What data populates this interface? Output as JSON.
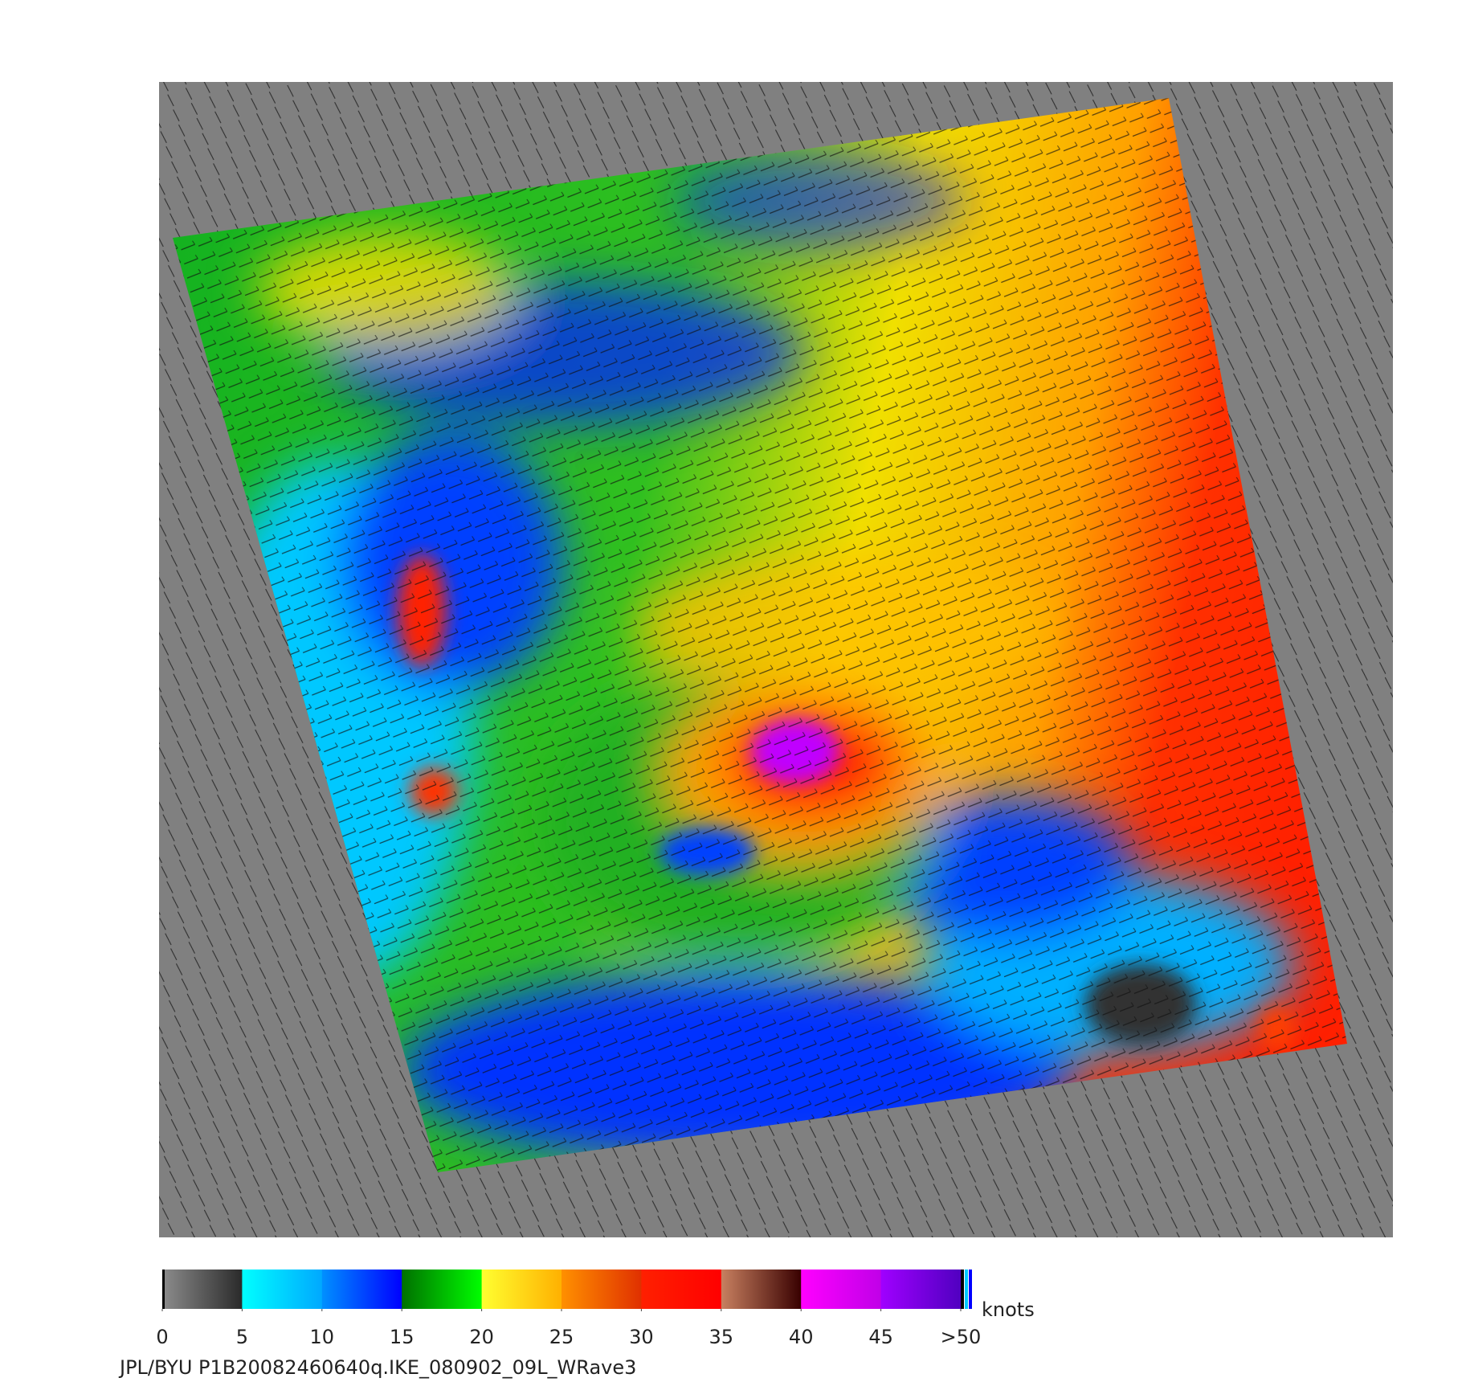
{
  "colorbar": {
    "ticks": [
      0,
      5,
      10,
      15,
      20,
      25,
      30,
      35,
      40,
      45,
      {
        "value": 50,
        "label": ">50"
      }
    ],
    "colors": [
      [
        "#8c8c8c",
        "#2a2a2a"
      ],
      [
        "#00ffff",
        "#00a8ff"
      ],
      [
        "#0090ff",
        "#0000ff"
      ],
      [
        "#007000",
        "#00ff00"
      ],
      [
        "#ffff30",
        "#ffb000"
      ],
      [
        "#ff9000",
        "#e03000"
      ],
      [
        "#ff2000",
        "#ff0000"
      ],
      [
        "#c88060",
        "#380000"
      ],
      [
        "#ff00ff",
        "#c000e8"
      ],
      [
        "#a000ff",
        "#5000c0"
      ]
    ],
    "unit": "knots"
  },
  "footer": "JPL/BYU  P1B20082460640q.IKE_080902_09L_WRave3"
}
